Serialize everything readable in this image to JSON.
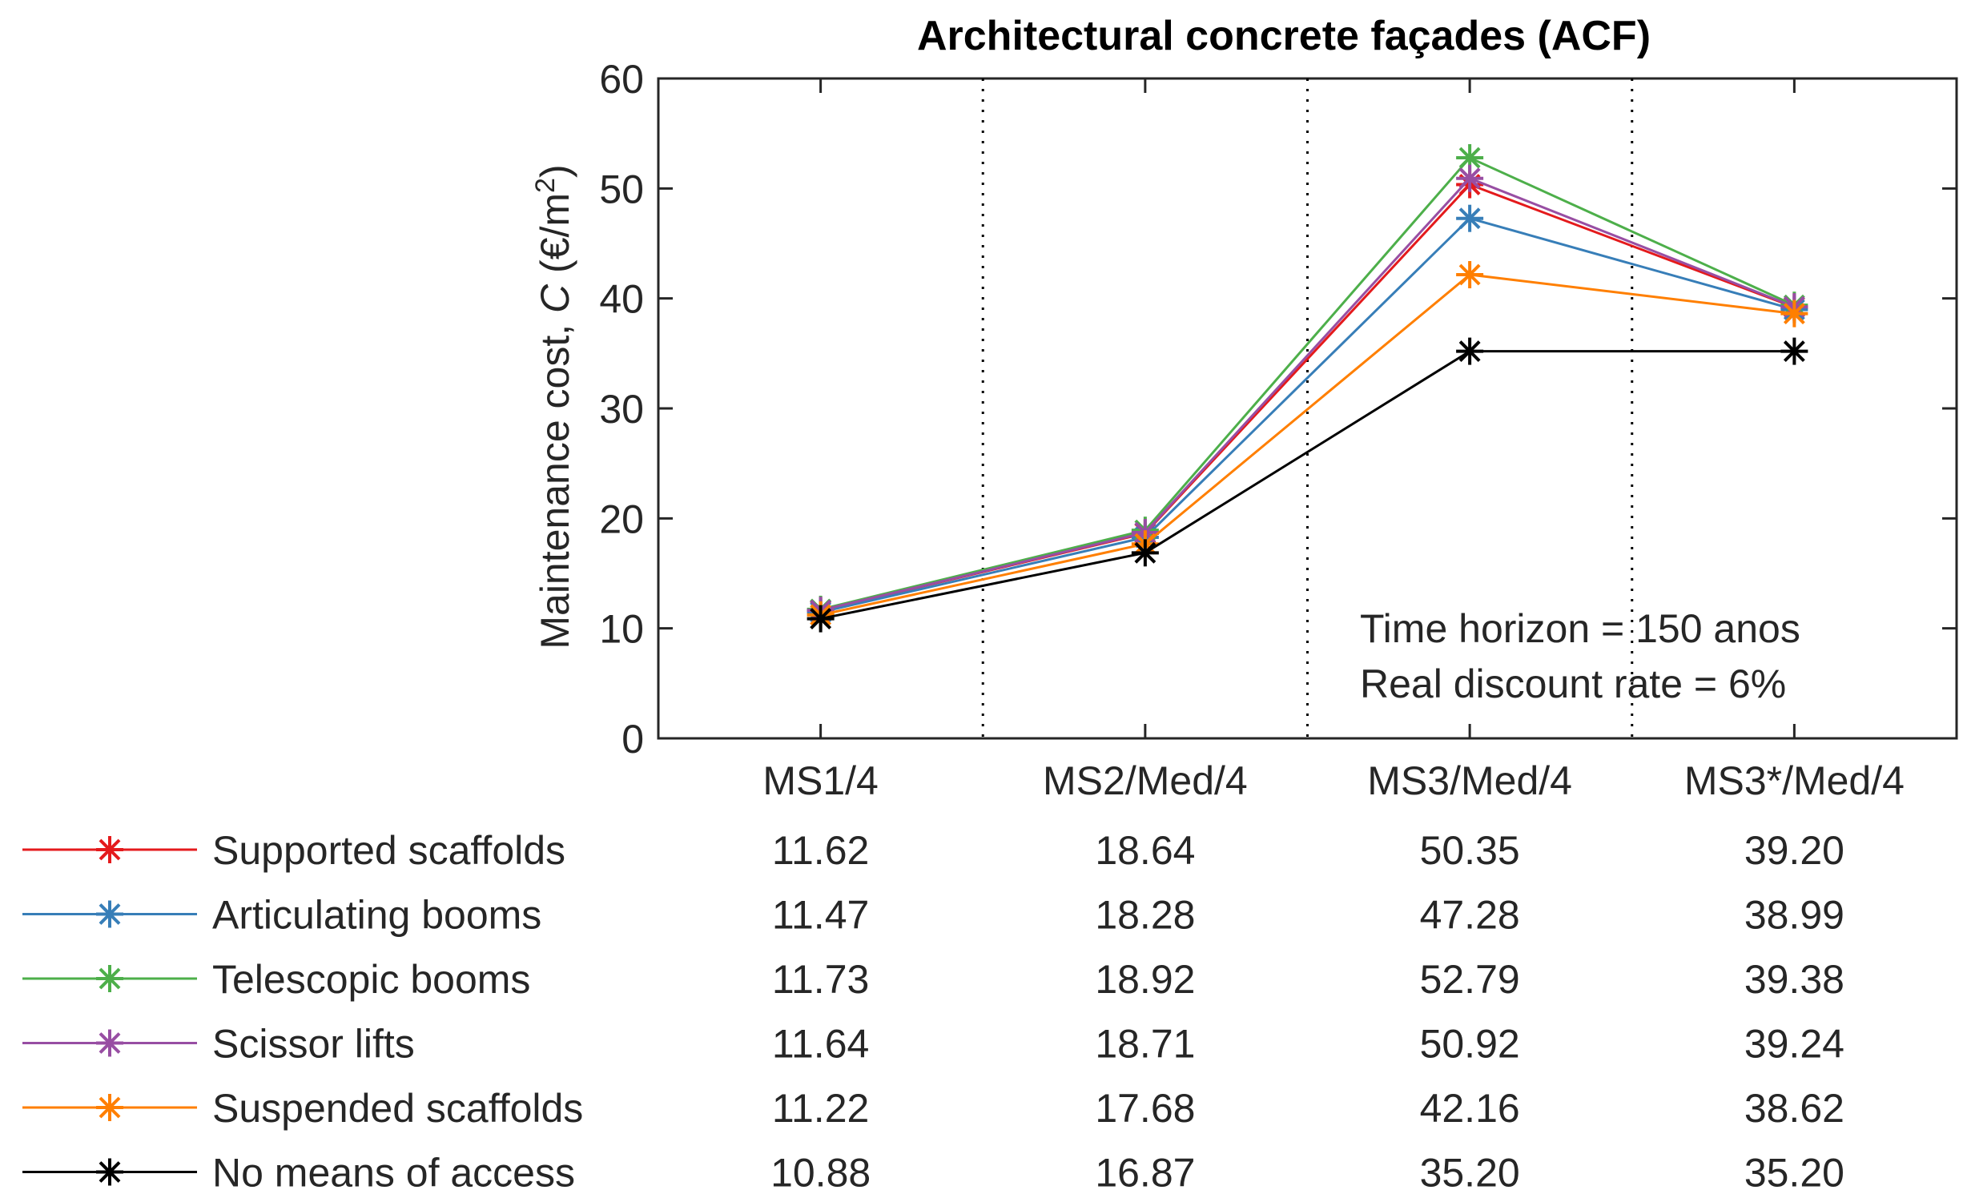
{
  "chart_data": {
    "type": "line",
    "title": "Architectural concrete façades (ACF)",
    "ylabel": "Maintenance cost, C (€/m2)",
    "ylabel_prefix": "Maintenance cost, ",
    "ylabel_var": "C",
    "ylabel_unit": " (€/m",
    "ylabel_sup": "2",
    "ylabel_close": ")",
    "xlabel": "",
    "ylim": [
      0,
      60
    ],
    "yticks": [
      "0",
      "10",
      "20",
      "30",
      "40",
      "50",
      "60"
    ],
    "categories": [
      "MS1/4",
      "MS2/Med/4",
      "MS3/Med/4",
      "MS3*/Med/4"
    ],
    "grid": "vertical dotted separators between categories",
    "legend_position": "bottom (legend table below plot)",
    "annotation": [
      "Time horizon = 150 anos",
      "Real discount rate = 6%"
    ],
    "series": [
      {
        "name": "Supported scaffolds",
        "color": "#e41a1c",
        "values": [
          11.62,
          18.64,
          50.35,
          39.2
        ],
        "labels": [
          "11.62",
          "18.64",
          "50.35",
          "39.20"
        ]
      },
      {
        "name": "Articulating booms",
        "color": "#377eb8",
        "values": [
          11.47,
          18.28,
          47.28,
          38.99
        ],
        "labels": [
          "11.47",
          "18.28",
          "47.28",
          "38.99"
        ]
      },
      {
        "name": "Telescopic booms",
        "color": "#4daf4a",
        "values": [
          11.73,
          18.92,
          52.79,
          39.38
        ],
        "labels": [
          "11.73",
          "18.92",
          "52.79",
          "39.38"
        ]
      },
      {
        "name": "Scissor lifts",
        "color": "#984ea3",
        "values": [
          11.64,
          18.71,
          50.92,
          39.24
        ],
        "labels": [
          "11.64",
          "18.71",
          "50.92",
          "39.24"
        ]
      },
      {
        "name": "Suspended scaffolds",
        "color": "#ff7f00",
        "values": [
          11.22,
          17.68,
          42.16,
          38.62
        ],
        "labels": [
          "11.22",
          "17.68",
          "42.16",
          "38.62"
        ]
      },
      {
        "name": "No means of access",
        "color": "#000000",
        "values": [
          10.88,
          16.87,
          35.2,
          35.2
        ],
        "labels": [
          "10.88",
          "16.87",
          "35.20",
          "35.20"
        ]
      }
    ]
  }
}
